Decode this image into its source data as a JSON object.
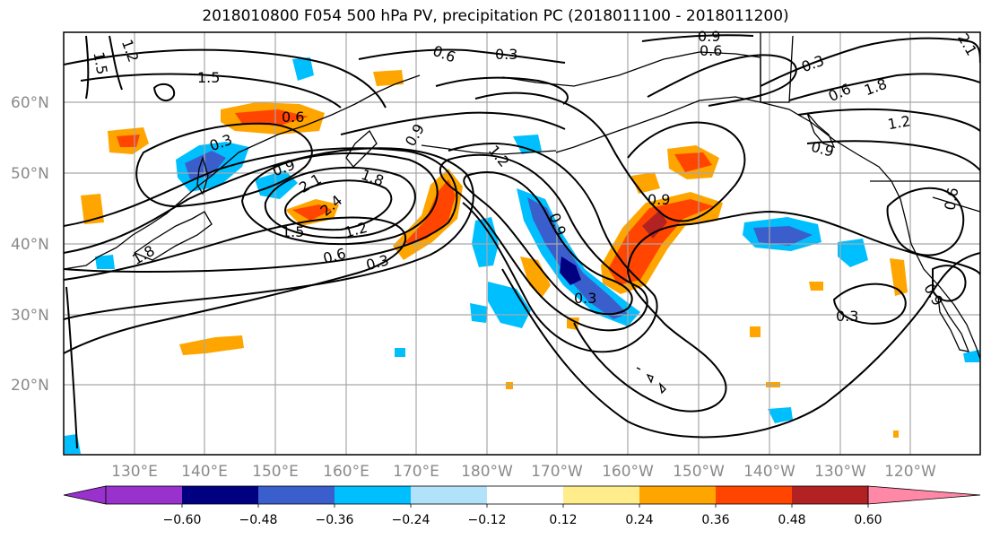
{
  "title": "2018010800 F054 500 hPa PV, precipitation PC (2018011100 - 2018011200)",
  "map": {
    "lat_labels": [
      "60°N",
      "50°N",
      "40°N",
      "30°N",
      "20°N"
    ],
    "lon_labels": [
      "130°E",
      "140°E",
      "150°E",
      "160°E",
      "170°E",
      "180°W",
      "170°W",
      "160°W",
      "150°W",
      "140°W",
      "130°W",
      "120°W"
    ],
    "contour_labels": [
      "1.5",
      "1.2",
      "0.9",
      "0.6",
      "0.3",
      "0.6",
      "0.3",
      "1.5",
      "0.6",
      "0.3",
      "0.9",
      "0.9",
      "2.1",
      "2.4",
      "1.8",
      "1.5",
      "1.2",
      "0.6",
      "0.3",
      "1.8",
      "0.9",
      "1.2",
      "0.9",
      "0.3",
      "0.6",
      "1.8",
      "1.2",
      "0.9",
      "0.6",
      "0.9",
      "0.3",
      "2.1"
    ],
    "colors": {
      "grid": "#a8a8a8",
      "contour": "#000000",
      "coast": "#000000"
    }
  },
  "colorbar": {
    "ticks": [
      "−0.60",
      "−0.48",
      "−0.36",
      "−0.24",
      "−0.12",
      "0.12",
      "0.24",
      "0.36",
      "0.48",
      "0.60"
    ],
    "colors": [
      "#9932cc",
      "#000080",
      "#3a5fcd",
      "#00bfff",
      "#b2e2fa",
      "#ffffff",
      "#ffec8b",
      "#ffa500",
      "#ff4500",
      "#b22222",
      "#ff88a6"
    ]
  }
}
